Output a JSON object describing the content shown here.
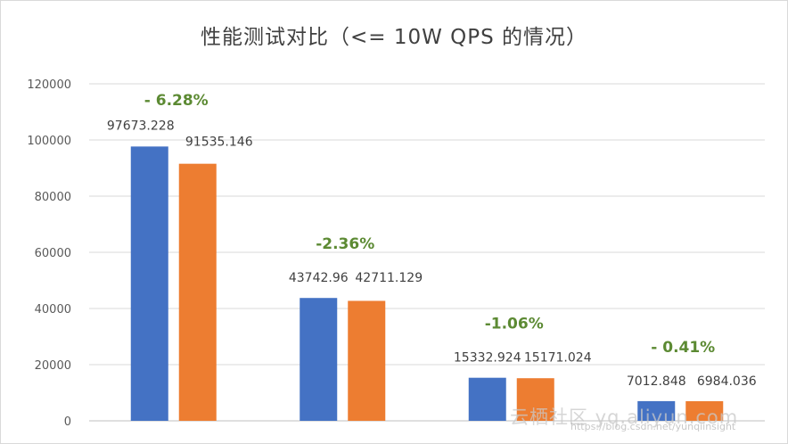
{
  "chart_data": {
    "type": "bar",
    "title": "性能测试对比（<= 10W QPS 的情况）",
    "xlabel": "",
    "ylabel": "",
    "ylim": [
      0,
      120000
    ],
    "yticks": [
      0,
      20000,
      40000,
      60000,
      80000,
      100000,
      120000
    ],
    "ytick_labels": [
      "0",
      "20000",
      "40000",
      "60000",
      "80000",
      "100000",
      "120000"
    ],
    "categories": [
      "",
      "",
      "",
      ""
    ],
    "series": [
      {
        "color": "#4472c4",
        "values": [
          97673.228,
          43742.96,
          15332.924,
          7012.848
        ],
        "labels": [
          "97673.228",
          "43742.96",
          "15332.924",
          "7012.848"
        ]
      },
      {
        "color": "#ed7d31",
        "values": [
          91535.146,
          42711.129,
          15171.024,
          6984.036
        ],
        "labels": [
          "91535.146",
          "42711.129",
          "15171.024",
          "6984.036"
        ]
      }
    ],
    "annotations": [
      "- 6.28%",
      "-2.36%",
      "-1.06%",
      "- 0.41%"
    ],
    "annotation_color": "#5c8a33",
    "grid": true,
    "legend": "none"
  },
  "watermark": {
    "text": "云栖社区 yq.aliyun.com",
    "subtext": "https://blog.csdn.net/yunqiinsight"
  }
}
